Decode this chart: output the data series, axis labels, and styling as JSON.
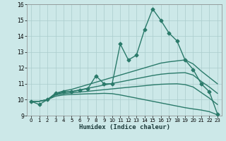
{
  "xlabel": "Humidex (Indice chaleur)",
  "xlim": [
    -0.5,
    23.5
  ],
  "ylim": [
    9,
    16
  ],
  "yticks": [
    9,
    10,
    11,
    12,
    13,
    14,
    15,
    16
  ],
  "xticks": [
    0,
    1,
    2,
    3,
    4,
    5,
    6,
    7,
    8,
    9,
    10,
    11,
    12,
    13,
    14,
    15,
    16,
    17,
    18,
    19,
    20,
    21,
    22,
    23
  ],
  "bg_color": "#cce8e8",
  "grid_color": "#aacccc",
  "line_color": "#2a7a6a",
  "lines": [
    {
      "x": [
        0,
        1,
        2,
        3,
        4,
        5,
        6,
        7,
        8,
        9,
        10,
        11,
        12,
        13,
        14,
        15,
        16,
        17,
        18,
        19,
        20,
        21,
        22,
        23
      ],
      "y": [
        9.9,
        9.7,
        10.0,
        10.4,
        10.5,
        10.5,
        10.6,
        10.7,
        11.5,
        11.0,
        11.0,
        13.5,
        12.5,
        12.8,
        14.4,
        15.7,
        15.0,
        14.2,
        13.7,
        12.5,
        11.9,
        11.0,
        10.5,
        9.1
      ],
      "marker": "D",
      "linewidth": 1.0,
      "markersize": 2.5
    },
    {
      "x": [
        0,
        1,
        2,
        3,
        4,
        5,
        6,
        7,
        8,
        9,
        10,
        11,
        12,
        13,
        14,
        15,
        16,
        17,
        18,
        19,
        20,
        21,
        22,
        23
      ],
      "y": [
        9.9,
        9.9,
        10.0,
        10.4,
        10.55,
        10.65,
        10.8,
        10.95,
        11.1,
        11.25,
        11.4,
        11.55,
        11.7,
        11.85,
        12.0,
        12.15,
        12.3,
        12.38,
        12.44,
        12.5,
        12.25,
        11.8,
        11.4,
        11.0
      ],
      "marker": null,
      "linewidth": 1.0,
      "markersize": 0
    },
    {
      "x": [
        0,
        1,
        2,
        3,
        4,
        5,
        6,
        7,
        8,
        9,
        10,
        11,
        12,
        13,
        14,
        15,
        16,
        17,
        18,
        19,
        20,
        21,
        22,
        23
      ],
      "y": [
        9.9,
        9.9,
        10.0,
        10.35,
        10.45,
        10.52,
        10.62,
        10.72,
        10.82,
        10.92,
        11.02,
        11.12,
        11.22,
        11.32,
        11.42,
        11.52,
        11.6,
        11.65,
        11.68,
        11.7,
        11.55,
        11.15,
        10.8,
        10.4
      ],
      "marker": null,
      "linewidth": 1.0,
      "markersize": 0
    },
    {
      "x": [
        0,
        1,
        2,
        3,
        4,
        5,
        6,
        7,
        8,
        9,
        10,
        11,
        12,
        13,
        14,
        15,
        16,
        17,
        18,
        19,
        20,
        21,
        22,
        23
      ],
      "y": [
        9.9,
        9.9,
        10.0,
        10.3,
        10.38,
        10.43,
        10.48,
        10.53,
        10.58,
        10.63,
        10.68,
        10.73,
        10.78,
        10.83,
        10.88,
        10.93,
        10.97,
        10.99,
        11.0,
        10.95,
        10.8,
        10.45,
        10.1,
        9.7
      ],
      "marker": null,
      "linewidth": 1.0,
      "markersize": 0
    },
    {
      "x": [
        0,
        1,
        2,
        3,
        4,
        5,
        6,
        7,
        8,
        9,
        10,
        11,
        12,
        13,
        14,
        15,
        16,
        17,
        18,
        19,
        20,
        21,
        22,
        23
      ],
      "y": [
        9.9,
        9.9,
        10.0,
        10.22,
        10.3,
        10.33,
        10.35,
        10.37,
        10.38,
        10.4,
        10.38,
        10.3,
        10.2,
        10.1,
        10.0,
        9.9,
        9.8,
        9.7,
        9.6,
        9.5,
        9.42,
        9.35,
        9.25,
        9.05
      ],
      "marker": null,
      "linewidth": 1.0,
      "markersize": 0
    }
  ]
}
